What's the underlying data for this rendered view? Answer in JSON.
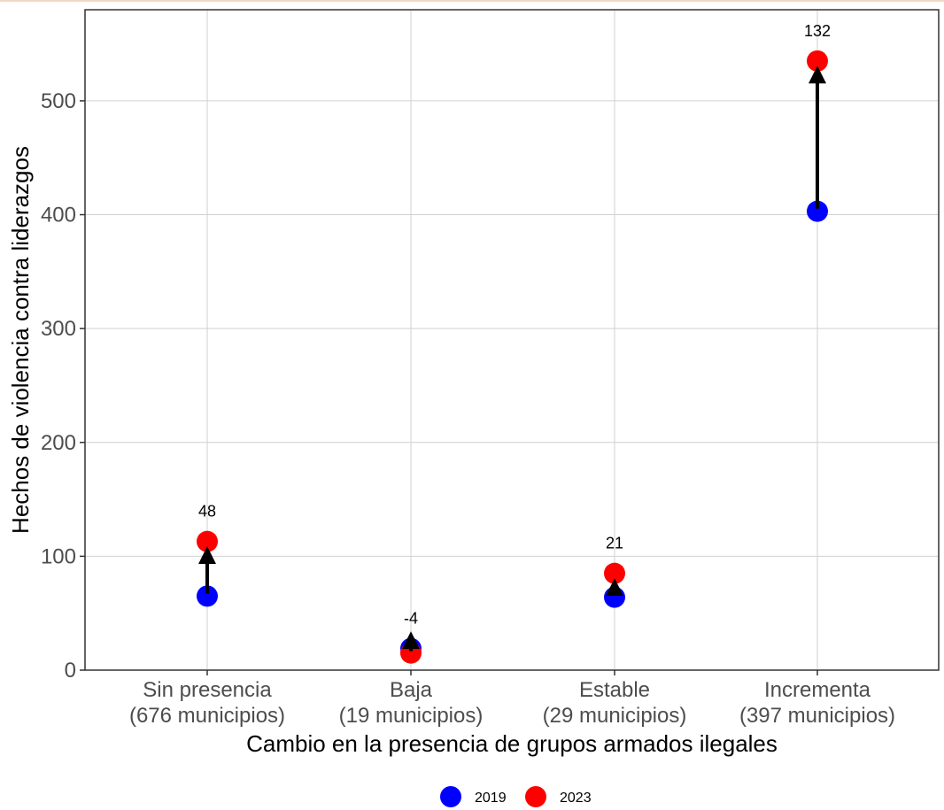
{
  "chart_data": {
    "type": "scatter",
    "title": "",
    "xlabel": "Cambio en la presencia de grupos armados ilegales",
    "ylabel": "Hechos de violencia contra liderazgos",
    "ylim": [
      0,
      580
    ],
    "yticks": [
      0,
      100,
      200,
      300,
      400,
      500
    ],
    "grid": true,
    "legend_position": "bottom",
    "categories": [
      {
        "line1": "Sin presencia",
        "line2": "(676 municipios)"
      },
      {
        "line1": "Baja",
        "line2": "(19 municipios)"
      },
      {
        "line1": "Estable",
        "line2": "(29 municipios)"
      },
      {
        "line1": "Incrementa",
        "line2": "(397 municipios)"
      }
    ],
    "series": [
      {
        "name": "2019",
        "color": "#0000ff",
        "values": [
          65,
          19,
          64,
          403
        ]
      },
      {
        "name": "2023",
        "color": "#ff0000",
        "values": [
          113,
          15,
          85,
          535
        ]
      }
    ],
    "annotations": [
      "48",
      "-4",
      "21",
      "132"
    ],
    "arrow_color": "#000000"
  }
}
